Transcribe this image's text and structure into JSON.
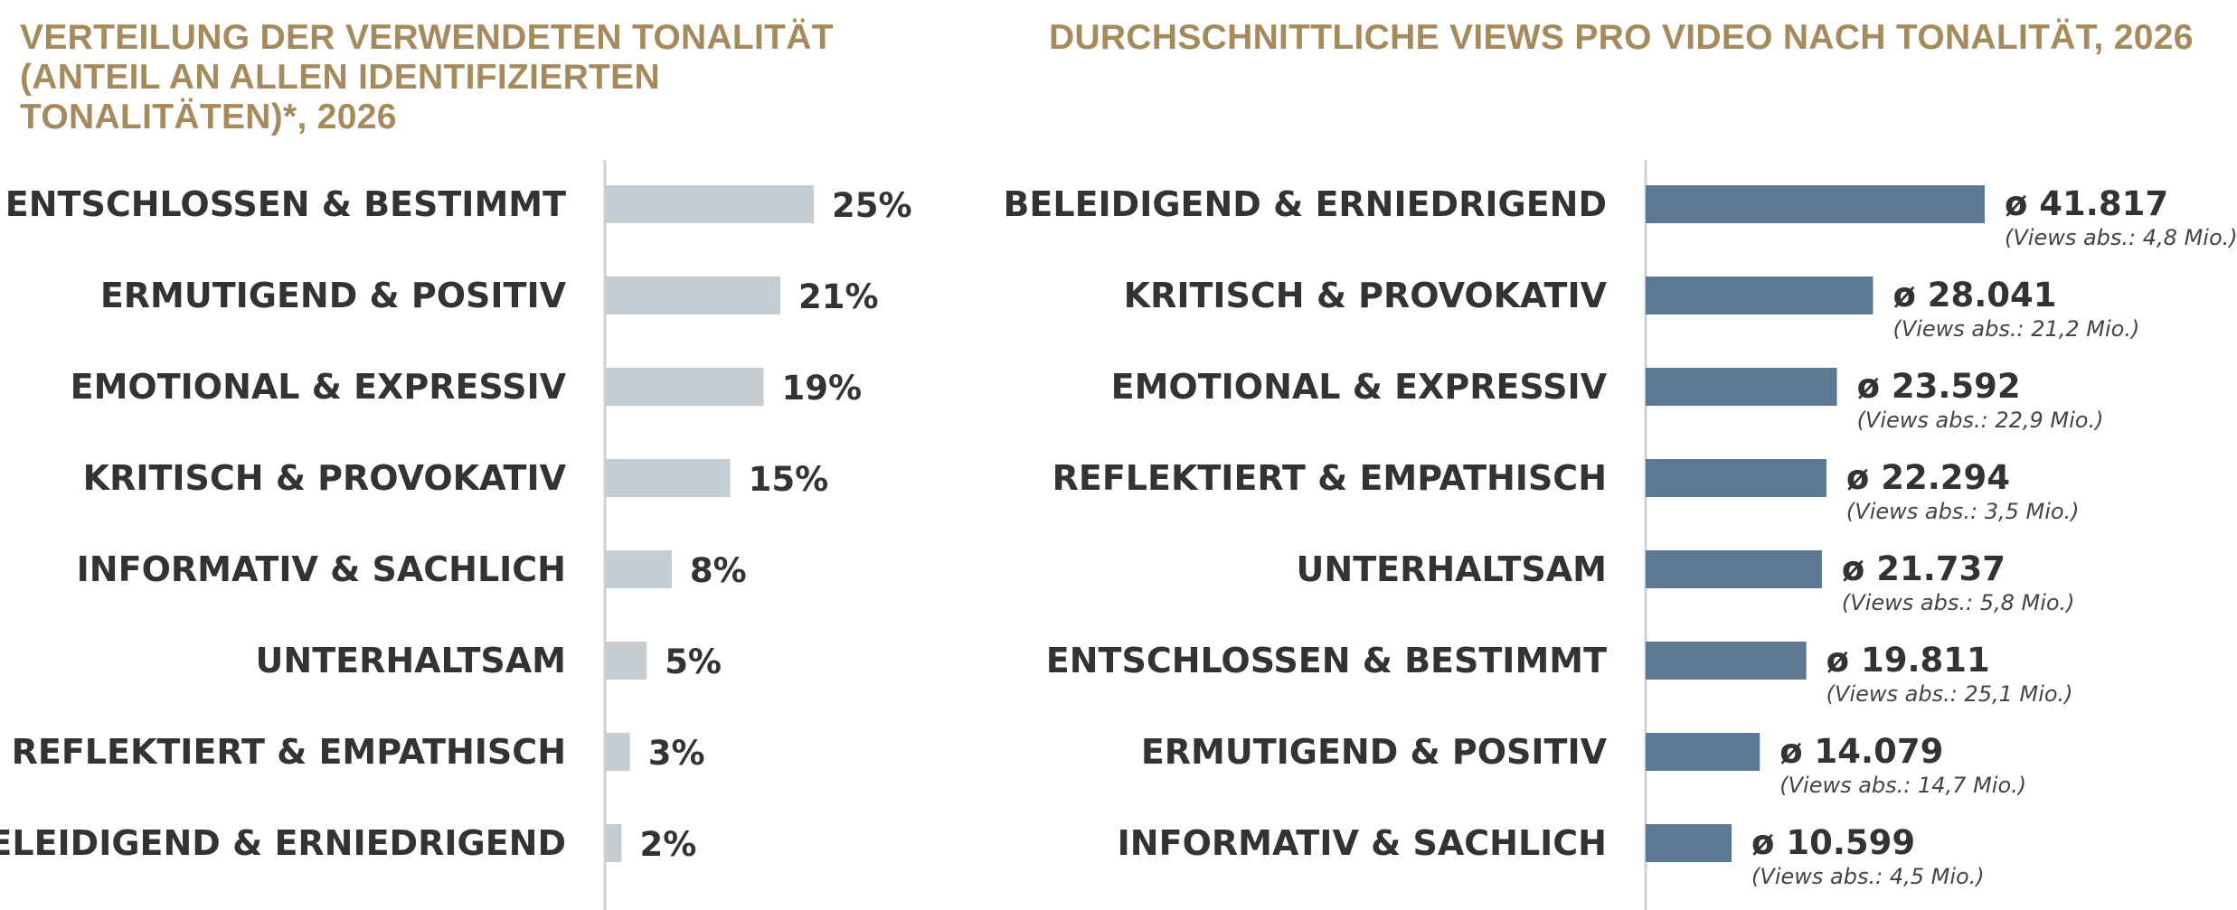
{
  "chart_data": [
    {
      "type": "bar",
      "orientation": "horizontal",
      "title": "VERTEILUNG DER VERWENDETEN TONALITÄT (ANTEIL AN ALLEN IDENTIFIZIERTEN TONALITÄTEN)*, 2026",
      "categories": [
        "ENTSCHLOSSEN & BESTIMMT",
        "ERMUTIGEND & POSITIV",
        "EMOTIONAL & EXPRESSIV",
        "KRITISCH & PROVOKATIV",
        "INFORMATIV & SACHLICH",
        "UNTERHALTSAM",
        "REFLEKTIERT & EMPATHISCH",
        "BELEIDIGEND & ERNIEDRIGEND"
      ],
      "values": [
        25,
        21,
        19,
        15,
        8,
        5,
        3,
        2
      ],
      "value_labels": [
        "25%",
        "21%",
        "19%",
        "15%",
        "8%",
        "5%",
        "3%",
        "2%"
      ],
      "unit": "%",
      "bar_color": "#c5cdd3",
      "grid": false
    },
    {
      "type": "bar",
      "orientation": "horizontal",
      "title": "DURCHSCHNITTLICHE VIEWS PRO VIDEO NACH TONALITÄT, 2026",
      "categories": [
        "BELEIDIGEND & ERNIEDRIGEND",
        "KRITISCH & PROVOKATIV",
        "EMOTIONAL & EXPRESSIV",
        "REFLEKTIERT & EMPATHISCH",
        "UNTERHALTSAM",
        "ENTSCHLOSSEN & BESTIMMT",
        "ERMUTIGEND & POSITIV",
        "INFORMATIV & SACHLICH"
      ],
      "values": [
        41817,
        28041,
        23592,
        22294,
        21737,
        19811,
        14079,
        10599
      ],
      "value_labels": [
        "ø 41.817",
        "ø 28.041",
        "ø 23.592",
        "ø 22.294",
        "ø 21.737",
        "ø 19.811",
        "ø 14.079",
        "ø 10.599"
      ],
      "sub_labels": [
        "(Views abs.: 4,8 Mio.)",
        "(Views abs.: 21,2 Mio.)",
        "(Views abs.: 22,9 Mio.)",
        "(Views abs.: 3,5 Mio.)",
        "(Views abs.: 5,8 Mio.)",
        "(Views abs.: 25,1 Mio.)",
        "(Views abs.: 14,7 Mio.)",
        "(Views abs.: 4,5 Mio.)"
      ],
      "bar_color": "#5c7895",
      "grid": false
    }
  ]
}
